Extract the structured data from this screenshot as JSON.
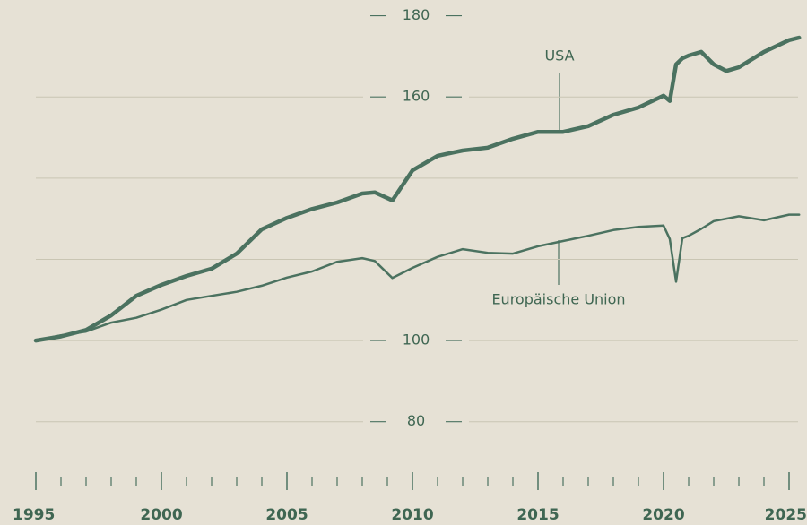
{
  "chart_data": {
    "type": "line",
    "x": [
      1995,
      1996,
      1997,
      1998,
      1999,
      2000,
      2001,
      2002,
      2003,
      2004,
      2005,
      2006,
      2007,
      2008,
      2008.5,
      2009.2,
      2010,
      2011,
      2012,
      2013,
      2014,
      2015,
      2016,
      2017,
      2018,
      2019,
      2020,
      2020.25,
      2020.5,
      2020.75,
      2021,
      2021.5,
      2022,
      2022.5,
      2023,
      2024,
      2025,
      2025.4
    ],
    "series": [
      {
        "name": "USA",
        "color": "#4b7260",
        "values": [
          100,
          101,
          102.6,
          106.2,
          111,
          113.7,
          115.9,
          117.7,
          121.4,
          127.4,
          130.2,
          132.4,
          134,
          136.2,
          136.5,
          134.5,
          141.9,
          145.5,
          146.8,
          147.5,
          149.7,
          151.4,
          151.4,
          152.8,
          155.6,
          157.4,
          160.3,
          159,
          168,
          169.5,
          170.2,
          171.1,
          168,
          166.4,
          167.3,
          171.1,
          174,
          174.6
        ]
      },
      {
        "name": "Europäische Union",
        "color": "#4b7260",
        "values": [
          100,
          101.3,
          102.2,
          104.4,
          105.6,
          107.6,
          110,
          111,
          112,
          113.5,
          115.5,
          117,
          119.4,
          120.3,
          119.6,
          115.4,
          117.9,
          120.6,
          122.5,
          121.6,
          121.4,
          123.2,
          124.5,
          125.8,
          127.2,
          128,
          128.3,
          125,
          114.5,
          125.2,
          125.8,
          127.5,
          129.4,
          130,
          130.6,
          129.6,
          131,
          131
        ]
      }
    ],
    "xlim": [
      1995,
      2025.4
    ],
    "xticks": [
      1995,
      2000,
      2005,
      2010,
      2015,
      2020,
      2025
    ],
    "xminor_ticks": [
      1996,
      1997,
      1998,
      1999,
      2001,
      2002,
      2003,
      2004,
      2006,
      2007,
      2008,
      2009,
      2011,
      2012,
      2013,
      2014,
      2016,
      2017,
      2018,
      2019,
      2021,
      2022,
      2023,
      2024
    ],
    "ylim": [
      70,
      182
    ],
    "yticks": [
      80,
      100,
      160,
      180
    ],
    "ygrid": [
      80,
      100,
      120,
      140,
      160,
      180
    ]
  }
}
